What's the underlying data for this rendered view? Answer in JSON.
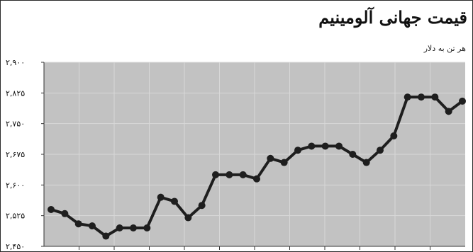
{
  "chart_data": {
    "type": "line",
    "title": "قیمت جهانی آلومینیم",
    "subtitle": "هر تن به دلار",
    "ylim": [
      2450,
      2900
    ],
    "yticks": [
      2450,
      2525,
      2600,
      2675,
      2750,
      2825,
      2900
    ],
    "ytick_labels": [
      "۲,۴۵۰",
      "۲,۵۲۵",
      "۲,۶۰۰",
      "۲,۶۷۵",
      "۲,۷۵۰",
      "۲,۸۲۵",
      "۲,۹۰۰"
    ],
    "grid": true,
    "series": [
      {
        "values": [
          2540,
          2530,
          2505,
          2500,
          2475,
          2495,
          2495,
          2495,
          2570,
          2560,
          2520,
          2550,
          2625,
          2625,
          2625,
          2615,
          2665,
          2655,
          2685,
          2695,
          2695,
          2695,
          2675,
          2655,
          2685,
          2720,
          2815,
          2815,
          2815,
          2780,
          2805
        ]
      }
    ],
    "colors": {
      "line": "#1e1e1e",
      "plot_bg": "#c2c2c2",
      "grid": "#d8d8d8"
    }
  }
}
